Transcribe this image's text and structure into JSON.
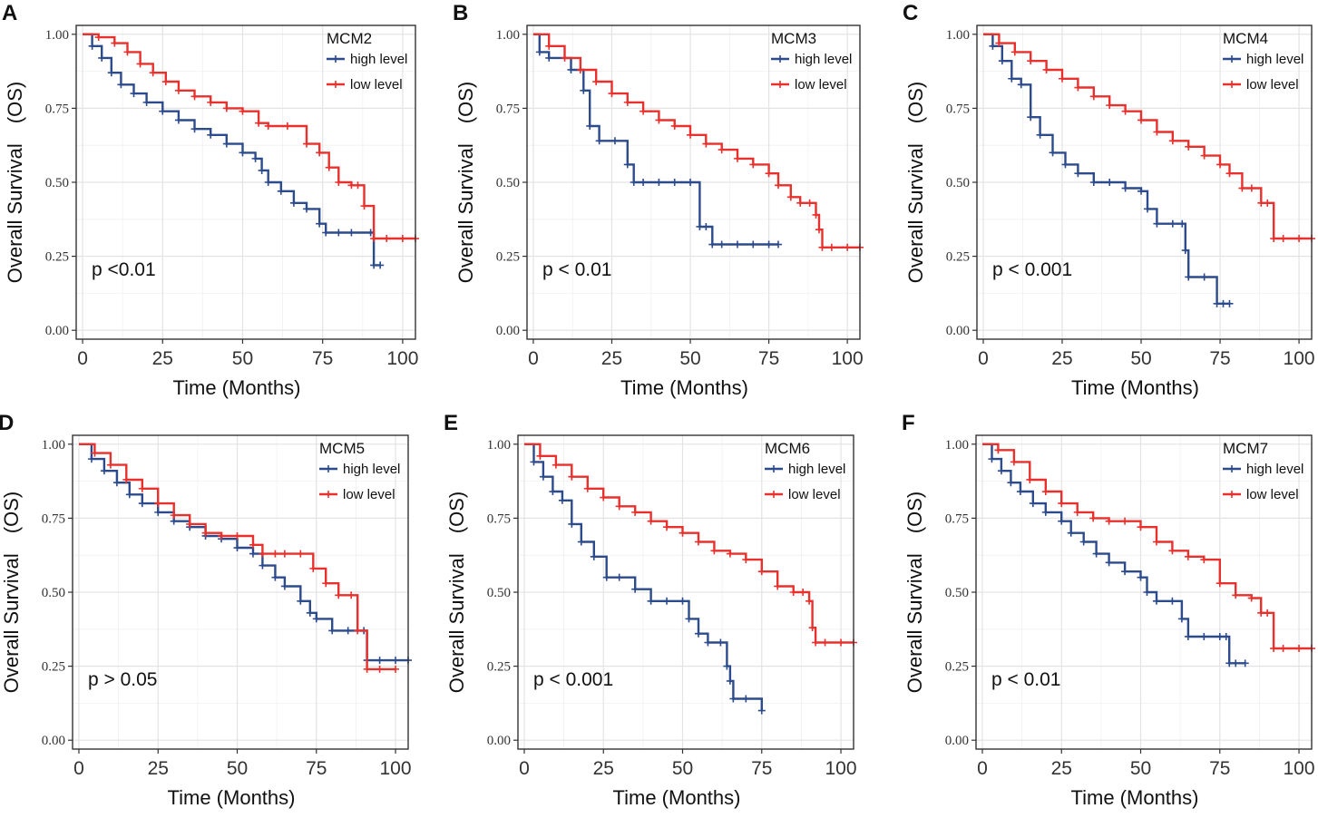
{
  "colors": {
    "high": "#2c4b8c",
    "low": "#e8302c",
    "grid": "#e3e3e3",
    "frame": "#333333"
  },
  "chart_data": [
    {
      "type": "line",
      "panel": "A",
      "title": "MCM2",
      "xlabel": "Time (Months)",
      "ylabel": "Overall Survival　(OS)",
      "xlim": [
        -2,
        104
      ],
      "ylim": [
        -0.03,
        1.03
      ],
      "xticks": [
        0,
        25,
        50,
        75,
        100
      ],
      "xtick_labels": [
        "0",
        "25",
        "50",
        "75",
        "100"
      ],
      "yticks": [
        0,
        0.25,
        0.5,
        0.75,
        1.0
      ],
      "ytick_labels": [
        "0.00",
        "0.25",
        "0.50",
        "0.75",
        "1.00"
      ],
      "pvalue": "p <0.01",
      "legend_position": "top-right",
      "series": [
        {
          "name": "high level",
          "color": "#2c4b8c",
          "x": [
            0,
            3,
            6,
            9,
            12,
            16,
            20,
            25,
            30,
            35,
            40,
            45,
            50,
            54,
            56,
            58,
            62,
            66,
            70,
            74,
            76,
            80,
            84,
            90,
            91,
            93
          ],
          "y": [
            1.0,
            0.96,
            0.92,
            0.87,
            0.83,
            0.8,
            0.77,
            0.74,
            0.71,
            0.68,
            0.66,
            0.63,
            0.6,
            0.58,
            0.54,
            0.5,
            0.47,
            0.43,
            0.41,
            0.36,
            0.33,
            0.33,
            0.33,
            0.33,
            0.22,
            0.22
          ]
        },
        {
          "name": "low level",
          "color": "#e8302c",
          "x": [
            0,
            5,
            10,
            14,
            18,
            22,
            26,
            30,
            35,
            40,
            45,
            50,
            55,
            58,
            64,
            70,
            74,
            77,
            80,
            84,
            86,
            88,
            91,
            95,
            100,
            104
          ],
          "y": [
            1.0,
            0.99,
            0.97,
            0.94,
            0.9,
            0.87,
            0.84,
            0.81,
            0.79,
            0.77,
            0.75,
            0.74,
            0.7,
            0.69,
            0.69,
            0.63,
            0.6,
            0.55,
            0.5,
            0.49,
            0.49,
            0.42,
            0.31,
            0.31,
            0.31,
            0.31
          ]
        }
      ]
    },
    {
      "type": "line",
      "panel": "B",
      "title": "MCM3",
      "xlabel": "Time (Months)",
      "ylabel": "Overall Survival　(OS)",
      "xlim": [
        -2,
        104
      ],
      "ylim": [
        -0.03,
        1.03
      ],
      "xticks": [
        0,
        25,
        50,
        75,
        100
      ],
      "xtick_labels": [
        "0",
        "25",
        "50",
        "75",
        "100"
      ],
      "yticks": [
        0,
        0.25,
        0.5,
        0.75,
        1.0
      ],
      "ytick_labels": [
        "0.00",
        "0.25",
        "0.50",
        "0.75",
        "1.00"
      ],
      "pvalue": "p < 0.01",
      "legend_position": "top-right",
      "series": [
        {
          "name": "high level",
          "color": "#2c4b8c",
          "x": [
            0,
            2,
            5,
            12,
            16,
            18,
            21,
            26,
            30,
            32,
            35,
            40,
            45,
            50,
            53,
            55,
            57,
            60,
            65,
            70,
            75,
            78
          ],
          "y": [
            1.0,
            0.94,
            0.92,
            0.88,
            0.81,
            0.69,
            0.64,
            0.64,
            0.56,
            0.5,
            0.5,
            0.5,
            0.5,
            0.5,
            0.35,
            0.35,
            0.29,
            0.29,
            0.29,
            0.29,
            0.29,
            0.29
          ]
        },
        {
          "name": "low level",
          "color": "#e8302c",
          "x": [
            0,
            5,
            10,
            15,
            20,
            25,
            30,
            35,
            40,
            45,
            50,
            55,
            60,
            65,
            70,
            75,
            78,
            82,
            85,
            88,
            90,
            91,
            92,
            95,
            100,
            104
          ],
          "y": [
            1.0,
            0.96,
            0.92,
            0.88,
            0.84,
            0.8,
            0.77,
            0.74,
            0.71,
            0.69,
            0.66,
            0.63,
            0.61,
            0.58,
            0.56,
            0.53,
            0.49,
            0.45,
            0.43,
            0.43,
            0.39,
            0.34,
            0.28,
            0.28,
            0.28,
            0.28
          ]
        }
      ]
    },
    {
      "type": "line",
      "panel": "C",
      "title": "MCM4",
      "xlabel": "Time (Months)",
      "ylabel": "Overall Survival　(OS)",
      "xlim": [
        -2,
        104
      ],
      "ylim": [
        -0.03,
        1.03
      ],
      "xticks": [
        0,
        25,
        50,
        75,
        100
      ],
      "xtick_labels": [
        "0",
        "25",
        "50",
        "75",
        "100"
      ],
      "yticks": [
        0,
        0.25,
        0.5,
        0.75,
        1.0
      ],
      "ytick_labels": [
        "0.00",
        "0.25",
        "0.50",
        "0.75",
        "1.00"
      ],
      "pvalue": "p < 0.001",
      "legend_position": "top-right",
      "series": [
        {
          "name": "high level",
          "color": "#2c4b8c",
          "x": [
            0,
            3,
            6,
            9,
            12,
            15,
            18,
            22,
            26,
            30,
            35,
            40,
            45,
            50,
            52,
            55,
            60,
            63,
            64,
            65,
            70,
            74,
            76,
            78
          ],
          "y": [
            1.0,
            0.96,
            0.91,
            0.85,
            0.83,
            0.72,
            0.66,
            0.6,
            0.56,
            0.53,
            0.5,
            0.5,
            0.48,
            0.47,
            0.41,
            0.36,
            0.36,
            0.36,
            0.27,
            0.18,
            0.18,
            0.09,
            0.09,
            0.09
          ]
        },
        {
          "name": "low level",
          "color": "#e8302c",
          "x": [
            0,
            5,
            10,
            15,
            20,
            25,
            30,
            35,
            40,
            45,
            50,
            55,
            60,
            65,
            70,
            75,
            78,
            82,
            85,
            88,
            90,
            92,
            95,
            100,
            104
          ],
          "y": [
            1.0,
            0.97,
            0.94,
            0.91,
            0.88,
            0.85,
            0.82,
            0.79,
            0.76,
            0.74,
            0.71,
            0.67,
            0.64,
            0.62,
            0.59,
            0.56,
            0.53,
            0.48,
            0.48,
            0.43,
            0.43,
            0.31,
            0.31,
            0.31,
            0.31
          ]
        }
      ]
    },
    {
      "type": "line",
      "panel": "D",
      "title": "MCM5",
      "xlabel": "Time (Months)",
      "ylabel": "Overall Survival　(OS)",
      "xlim": [
        -2,
        104
      ],
      "ylim": [
        -0.03,
        1.03
      ],
      "xticks": [
        0,
        25,
        50,
        75,
        100
      ],
      "xtick_labels": [
        "0",
        "25",
        "50",
        "75",
        "100"
      ],
      "yticks": [
        0,
        0.25,
        0.5,
        0.75,
        1.0
      ],
      "ytick_labels": [
        "0.00",
        "0.25",
        "0.50",
        "0.75",
        "1.00"
      ],
      "pvalue": "p > 0.05",
      "legend_position": "top-right",
      "series": [
        {
          "name": "high level",
          "color": "#2c4b8c",
          "x": [
            0,
            4,
            8,
            12,
            16,
            20,
            25,
            30,
            35,
            40,
            45,
            50,
            55,
            58,
            62,
            65,
            70,
            73,
            75,
            80,
            85,
            90,
            91,
            95,
            100,
            104
          ],
          "y": [
            1.0,
            0.95,
            0.91,
            0.87,
            0.83,
            0.8,
            0.77,
            0.74,
            0.72,
            0.69,
            0.68,
            0.65,
            0.63,
            0.59,
            0.55,
            0.52,
            0.47,
            0.43,
            0.41,
            0.37,
            0.37,
            0.37,
            0.27,
            0.27,
            0.27,
            0.27
          ]
        },
        {
          "name": "low level",
          "color": "#e8302c",
          "x": [
            0,
            5,
            10,
            15,
            20,
            25,
            30,
            35,
            40,
            45,
            50,
            55,
            58,
            62,
            65,
            70,
            74,
            78,
            82,
            86,
            88,
            91,
            95,
            100
          ],
          "y": [
            1.0,
            0.97,
            0.93,
            0.88,
            0.85,
            0.8,
            0.76,
            0.73,
            0.7,
            0.69,
            0.69,
            0.66,
            0.63,
            0.63,
            0.63,
            0.63,
            0.58,
            0.53,
            0.49,
            0.49,
            0.37,
            0.24,
            0.24,
            0.24
          ]
        }
      ]
    },
    {
      "type": "line",
      "panel": "E",
      "title": "MCM6",
      "xlabel": "Time (Months)",
      "ylabel": "Overall Survival　(OS)",
      "xlim": [
        -2,
        104
      ],
      "ylim": [
        -0.03,
        1.03
      ],
      "xticks": [
        0,
        25,
        50,
        75,
        100
      ],
      "xtick_labels": [
        "0",
        "25",
        "50",
        "75",
        "100"
      ],
      "yticks": [
        0,
        0.25,
        0.5,
        0.75,
        1.0
      ],
      "ytick_labels": [
        "0.00",
        "0.25",
        "0.50",
        "0.75",
        "1.00"
      ],
      "pvalue": "p < 0.001",
      "legend_position": "top-right",
      "series": [
        {
          "name": "high level",
          "color": "#2c4b8c",
          "x": [
            0,
            3,
            6,
            9,
            12,
            15,
            18,
            22,
            26,
            30,
            35,
            40,
            45,
            50,
            52,
            55,
            58,
            62,
            64,
            65,
            66,
            70,
            75
          ],
          "y": [
            1.0,
            0.94,
            0.89,
            0.84,
            0.81,
            0.73,
            0.67,
            0.62,
            0.55,
            0.55,
            0.51,
            0.47,
            0.47,
            0.47,
            0.41,
            0.36,
            0.33,
            0.33,
            0.25,
            0.2,
            0.14,
            0.14,
            0.1
          ]
        },
        {
          "name": "low level",
          "color": "#e8302c",
          "x": [
            0,
            5,
            10,
            15,
            20,
            25,
            30,
            35,
            40,
            45,
            50,
            55,
            60,
            65,
            70,
            75,
            80,
            85,
            88,
            90,
            91,
            92,
            95,
            100,
            104
          ],
          "y": [
            1.0,
            0.96,
            0.93,
            0.89,
            0.85,
            0.82,
            0.79,
            0.77,
            0.74,
            0.72,
            0.7,
            0.67,
            0.64,
            0.63,
            0.61,
            0.57,
            0.52,
            0.5,
            0.5,
            0.47,
            0.38,
            0.33,
            0.33,
            0.33,
            0.33
          ]
        }
      ]
    },
    {
      "type": "line",
      "panel": "F",
      "title": "MCM7",
      "xlabel": "Time (Months)",
      "ylabel": "Overall Survival　(OS)",
      "xlim": [
        -2,
        104
      ],
      "ylim": [
        -0.03,
        1.03
      ],
      "xticks": [
        0,
        25,
        50,
        75,
        100
      ],
      "xtick_labels": [
        "0",
        "25",
        "50",
        "75",
        "100"
      ],
      "yticks": [
        0,
        0.25,
        0.5,
        0.75,
        1.0
      ],
      "ytick_labels": [
        "0.00",
        "0.25",
        "0.50",
        "0.75",
        "1.00"
      ],
      "pvalue": "p < 0.01",
      "legend_position": "top-right",
      "series": [
        {
          "name": "high level",
          "color": "#2c4b8c",
          "x": [
            0,
            3,
            6,
            9,
            12,
            16,
            20,
            25,
            28,
            32,
            36,
            40,
            45,
            50,
            52,
            55,
            60,
            63,
            65,
            70,
            75,
            77,
            78,
            80,
            83
          ],
          "y": [
            1.0,
            0.95,
            0.91,
            0.87,
            0.84,
            0.8,
            0.77,
            0.74,
            0.7,
            0.67,
            0.63,
            0.6,
            0.57,
            0.55,
            0.5,
            0.47,
            0.47,
            0.41,
            0.35,
            0.35,
            0.35,
            0.35,
            0.26,
            0.26,
            0.26
          ]
        },
        {
          "name": "low level",
          "color": "#e8302c",
          "x": [
            0,
            5,
            10,
            15,
            20,
            25,
            30,
            35,
            40,
            45,
            50,
            55,
            60,
            65,
            70,
            75,
            80,
            85,
            88,
            90,
            92,
            95,
            100,
            104
          ],
          "y": [
            1.0,
            0.98,
            0.94,
            0.88,
            0.84,
            0.8,
            0.77,
            0.75,
            0.74,
            0.74,
            0.72,
            0.67,
            0.64,
            0.62,
            0.61,
            0.53,
            0.49,
            0.48,
            0.43,
            0.43,
            0.31,
            0.31,
            0.31,
            0.31
          ]
        }
      ]
    }
  ]
}
